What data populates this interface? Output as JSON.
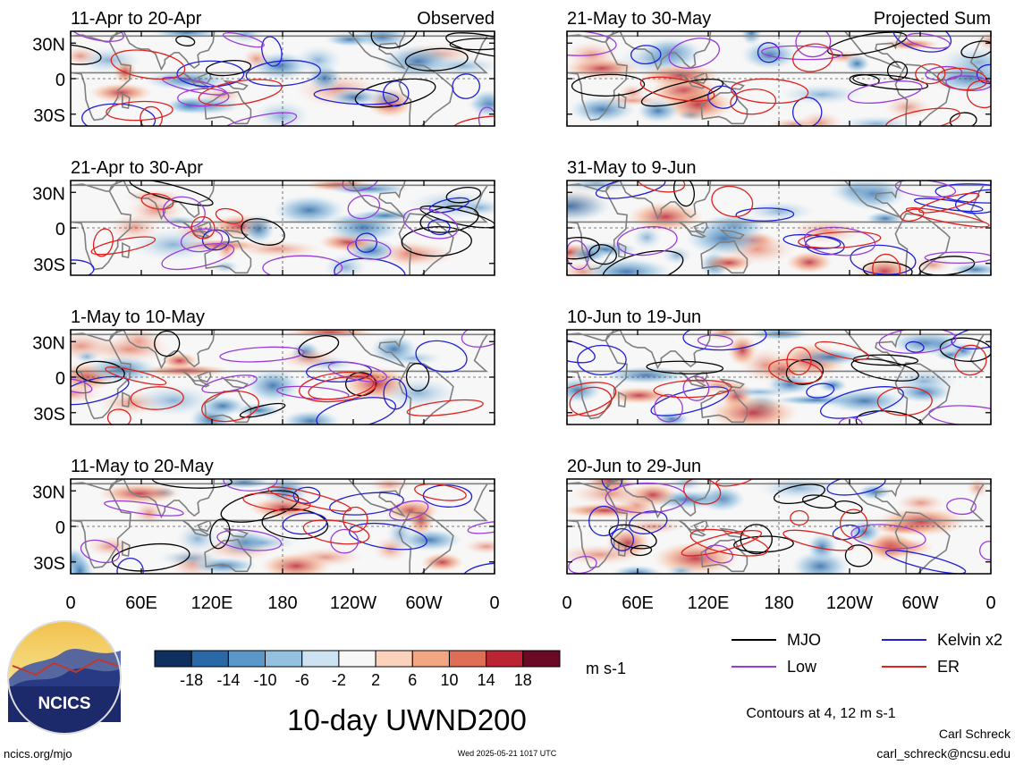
{
  "chart_data": {
    "type": "heatmap",
    "title": "10-day UWND200",
    "variable": "UWND200",
    "units": "m s-1",
    "x_ticks": [
      "0",
      "60E",
      "120E",
      "180",
      "120W",
      "60W",
      "0"
    ],
    "y_ticks": [
      "30N",
      "0",
      "30S"
    ],
    "x_range": [
      0,
      360
    ],
    "y_range": [
      -40,
      40
    ],
    "column_labels": [
      "Observed",
      "Projected Sum"
    ],
    "panels": [
      {
        "period": "11-Apr to 20-Apr",
        "column": "Observed"
      },
      {
        "period": "21-Apr to 30-Apr",
        "column": "Observed"
      },
      {
        "period": "1-May to 10-May",
        "column": "Observed"
      },
      {
        "period": "11-May to 20-May",
        "column": "Observed"
      },
      {
        "period": "21-May to 30-May",
        "column": "Projected Sum"
      },
      {
        "period": "31-May to 9-Jun",
        "column": "Projected Sum"
      },
      {
        "period": "10-Jun to 19-Jun",
        "column": "Projected Sum"
      },
      {
        "period": "20-Jun to 29-Jun",
        "column": "Projected Sum"
      }
    ],
    "colorbar": {
      "levels": [
        -22,
        -18,
        -14,
        -10,
        -6,
        -2,
        2,
        6,
        10,
        14,
        18,
        22
      ],
      "tick_labels": [
        "-18",
        "-14",
        "-10",
        "-6",
        "-2",
        "2",
        "6",
        "10",
        "14",
        "18"
      ],
      "colors": [
        "#0f2f5e",
        "#2a68a8",
        "#5b97c9",
        "#94c1e0",
        "#cde3f2",
        "#f7f7f7",
        "#fbd3bd",
        "#f2a782",
        "#de6e56",
        "#bb2533",
        "#6b0a24"
      ]
    },
    "contour_legend": [
      {
        "label": "MJO",
        "color": "#000000"
      },
      {
        "label": "Kelvin x2",
        "color": "#1f1fd6"
      },
      {
        "label": "Low",
        "color": "#9a3cd9"
      },
      {
        "label": "ER",
        "color": "#e0211e"
      }
    ],
    "contour_note": "Contours at 4, 12 m s-1"
  },
  "footer": {
    "logo_text": "NCICS",
    "site": "ncics.org/mjo",
    "timestamp": "Wed 2025-05-21 1017 UTC",
    "author": "Carl Schreck",
    "email": "carl_schreck@ncsu.edu"
  },
  "colors": {
    "mjo": "#000000",
    "kelvin": "#1f1fd6",
    "low": "#9a3cd9",
    "er": "#e0211e",
    "land": "#7f7f7f"
  }
}
